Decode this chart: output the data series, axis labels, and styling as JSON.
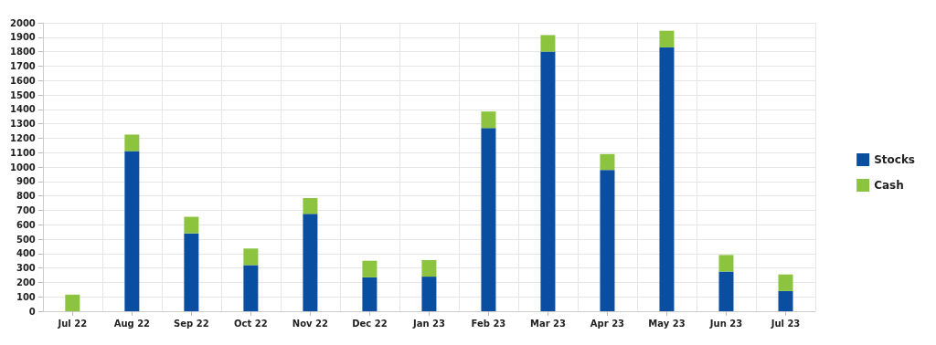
{
  "chart_data": {
    "type": "bar",
    "stacked": true,
    "categories": [
      "Jul 22",
      "Aug 22",
      "Sep 22",
      "Oct 22",
      "Nov 22",
      "Dec 22",
      "Jan 23",
      "Feb 23",
      "Mar 23",
      "Apr 23",
      "May 23",
      "Jun 23",
      "Jul 23"
    ],
    "series": [
      {
        "name": "Stocks",
        "color": "#0a4ea2",
        "values": [
          0,
          1110,
          540,
          320,
          675,
          235,
          240,
          1270,
          1800,
          980,
          1830,
          275,
          140
        ]
      },
      {
        "name": "Cash",
        "color": "#8cc43f",
        "values": [
          115,
          115,
          115,
          115,
          110,
          115,
          115,
          115,
          115,
          110,
          115,
          115,
          115
        ]
      }
    ],
    "ylim": [
      0,
      2000
    ],
    "yticks": [
      0,
      100,
      200,
      300,
      400,
      500,
      600,
      700,
      800,
      900,
      1000,
      1100,
      1200,
      1300,
      1400,
      1500,
      1600,
      1700,
      1800,
      1900,
      2000
    ],
    "grid": true,
    "legend": "right"
  }
}
